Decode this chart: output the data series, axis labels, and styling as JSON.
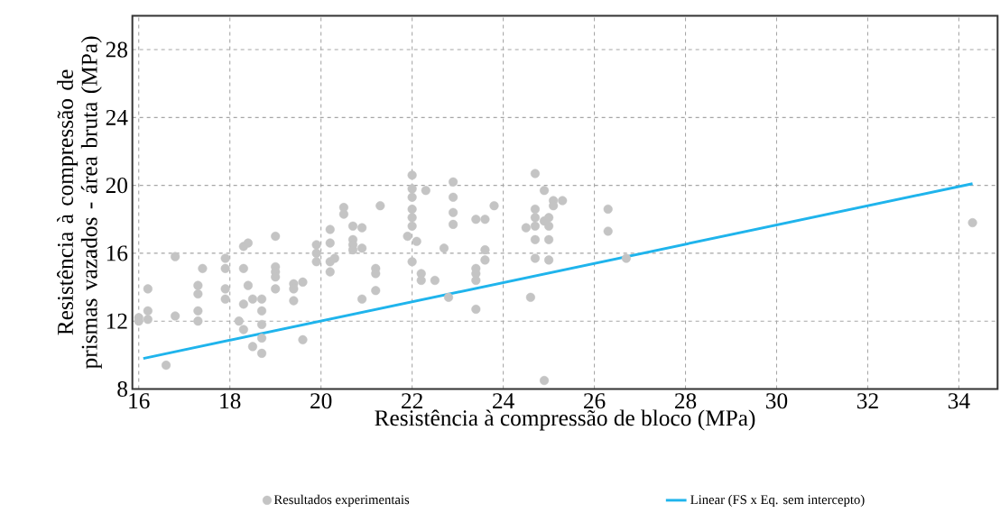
{
  "chart_data": {
    "type": "scatter",
    "xlabel": "Resistência à compressão de bloco (MPa)",
    "ylabel": "Resistência à compressão de prismas vazados - área bruta (MPa)",
    "xlim": [
      15.86,
      34.85
    ],
    "ylim": [
      8,
      30
    ],
    "xticks": [
      16,
      18,
      20,
      22,
      24,
      26,
      28,
      30,
      32,
      34
    ],
    "yticks": [
      8,
      12,
      16,
      20,
      24,
      28
    ],
    "grid": true,
    "legend": "bottom",
    "series": [
      {
        "name": "Resultados experimentais",
        "color": "#c4c4c4",
        "marker": "circle",
        "x": [
          16.0,
          16.2,
          16.2,
          16.2,
          16.0,
          16.8,
          16.8,
          16.6,
          17.3,
          17.3,
          17.3,
          17.3,
          17.4,
          17.9,
          17.9,
          17.9,
          17.9,
          18.2,
          18.3,
          18.3,
          18.3,
          18.3,
          18.4,
          18.4,
          18.5,
          18.5,
          18.7,
          18.7,
          18.7,
          18.7,
          18.7,
          19.0,
          19.0,
          19.0,
          19.0,
          19.0,
          19.4,
          19.4,
          19.4,
          19.6,
          19.6,
          19.9,
          19.9,
          19.9,
          20.2,
          20.2,
          20.2,
          20.2,
          20.3,
          20.5,
          20.5,
          20.7,
          20.7,
          20.7,
          20.7,
          20.9,
          20.9,
          20.9,
          21.2,
          21.2,
          21.2,
          21.3,
          22.0,
          22.0,
          22.0,
          22.0,
          22.0,
          22.0,
          21.9,
          22.1,
          22.0,
          22.2,
          22.2,
          22.3,
          22.5,
          22.7,
          22.8,
          22.9,
          22.9,
          22.9,
          22.9,
          23.4,
          23.4,
          23.4,
          23.4,
          23.4,
          23.6,
          23.6,
          23.6,
          23.8,
          24.5,
          24.6,
          24.7,
          24.7,
          24.7,
          24.7,
          24.7,
          24.7,
          24.9,
          24.9,
          25.0,
          24.9,
          25.1,
          25.1,
          25.3,
          25.0,
          25.0,
          25.0,
          26.3,
          26.3,
          26.7,
          34.3
        ],
        "values": [
          12.0,
          12.1,
          12.6,
          13.9,
          12.2,
          12.3,
          15.8,
          9.4,
          12.0,
          12.6,
          13.6,
          14.1,
          15.1,
          15.7,
          15.1,
          13.9,
          13.3,
          12.0,
          11.5,
          13.0,
          15.1,
          16.4,
          16.6,
          14.1,
          13.3,
          10.5,
          13.3,
          12.6,
          11.8,
          11.0,
          10.1,
          17.0,
          15.2,
          14.9,
          14.6,
          13.9,
          14.2,
          13.9,
          13.2,
          14.3,
          10.9,
          16.5,
          16.0,
          15.5,
          17.4,
          16.6,
          15.5,
          14.9,
          15.7,
          18.7,
          18.3,
          17.6,
          16.8,
          16.5,
          16.2,
          17.5,
          16.3,
          13.3,
          15.1,
          14.8,
          13.8,
          18.8,
          20.6,
          19.8,
          19.3,
          18.6,
          18.1,
          17.6,
          17.0,
          16.7,
          15.5,
          14.8,
          14.4,
          19.7,
          14.4,
          16.3,
          13.4,
          20.2,
          19.3,
          18.4,
          17.7,
          18.0,
          12.7,
          15.1,
          14.8,
          14.4,
          18.0,
          16.2,
          15.6,
          18.8,
          17.5,
          13.4,
          20.7,
          18.6,
          18.1,
          17.6,
          16.8,
          15.7,
          19.7,
          17.9,
          15.6,
          8.5,
          19.1,
          18.8,
          19.1,
          18.1,
          17.6,
          16.8,
          18.6,
          17.3,
          15.7,
          17.8
        ]
      },
      {
        "name": "Linear (FS x Eq. sem intercepto)",
        "type": "line",
        "color": "#1fb4ec",
        "line_style": "solid",
        "marker": "none",
        "x": [
          16.1,
          34.3
        ],
        "values": [
          9.8,
          20.1
        ]
      }
    ]
  }
}
